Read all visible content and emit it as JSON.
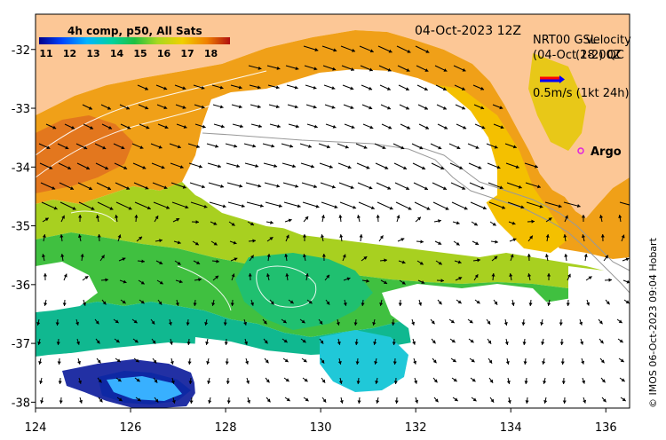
{
  "map": {
    "date_label": "04-Oct-2023 12Z",
    "product_label": "4h comp, p50, All Sats",
    "velocity_title_a": "NRT00 GSL",
    "velocity_title_b": "velocity",
    "velocity_sub_a": "(04-Oct 18:00Z",
    "velocity_sub_b": "(2-2) QC",
    "velocity_scale": "0.5m/s (1kt 24h)",
    "argo_label": "Argo",
    "credit": "© IMOS 06-Oct-2023 09:04 Hobart",
    "colorbar": {
      "ticks": [
        "11",
        "12",
        "13",
        "14",
        "15",
        "16",
        "17",
        "18"
      ]
    },
    "y_ticks": [
      "-32",
      "-33",
      "-34",
      "-35",
      "-36",
      "-37",
      "-38"
    ],
    "x_ticks": [
      "124",
      "126",
      "128",
      "130",
      "132",
      "134",
      "136"
    ],
    "extent": {
      "lon": [
        124,
        136.5
      ],
      "lat": [
        -38.1,
        -31.4
      ]
    },
    "colors": {
      "land": "#fcc796",
      "ocean_blank": "#ffffff",
      "argo_marker": "#e020e0",
      "scale_arrow_red": "#ff0000",
      "scale_arrow_blue": "#0000ff"
    }
  }
}
